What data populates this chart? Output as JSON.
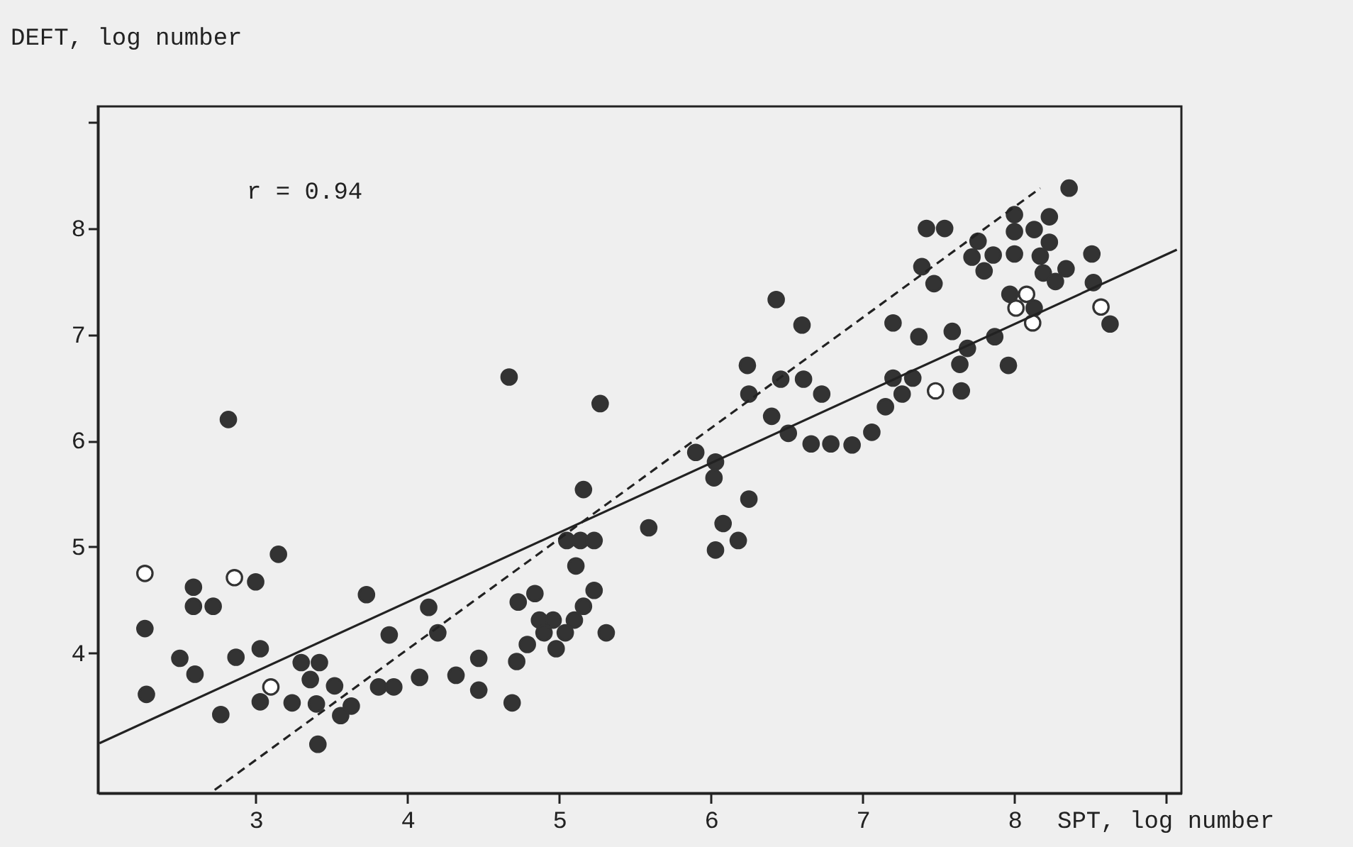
{
  "chart_data": {
    "type": "scatter",
    "xlabel": "SPT, log number",
    "ylabel": "DEFT, log number",
    "annotations": [
      "r = 0.94"
    ],
    "xlim": [
      1.96,
      9.1
    ],
    "xticks": [
      3,
      4,
      5,
      6,
      7,
      8,
      {
        "value": 9,
        "label": null
      }
    ],
    "ylim": [
      2.68,
      9.15
    ],
    "yticks": [
      4,
      5,
      6,
      7,
      8,
      {
        "value": 9,
        "label": null
      }
    ],
    "grid": false,
    "series": [
      {
        "marker": "circle",
        "color": "#333333",
        "x": [
          4.67,
          2.82,
          5.27,
          5.9,
          5.16,
          5.59,
          3.0,
          3.15,
          2.59,
          2.59,
          2.72,
          2.27,
          3.73,
          5.05,
          5.14,
          5.23,
          5.11,
          5.23,
          5.16,
          5.1,
          4.96,
          4.87,
          5.04,
          4.9,
          4.98,
          4.79,
          4.72,
          4.73,
          4.84,
          5.31,
          4.69,
          4.14,
          4.2,
          3.88,
          4.47,
          4.47,
          4.32,
          4.08,
          3.81,
          3.91,
          3.63,
          3.56,
          3.52,
          3.41,
          3.4,
          3.24,
          3.03,
          2.77,
          2.28,
          2.5,
          2.6,
          2.87,
          3.03,
          3.3,
          3.42,
          3.36,
          6.24,
          6.25,
          6.46,
          6.61,
          6.73,
          6.4,
          6.51,
          6.66,
          6.79,
          6.93,
          7.06,
          7.15,
          7.2,
          7.33,
          7.26,
          7.64,
          7.65,
          7.96,
          6.03,
          6.02,
          6.25,
          6.08,
          6.18,
          6.03,
          8.36,
          8.0,
          8.0,
          8.13,
          8.23,
          8.23,
          8.17,
          8.0,
          8.19,
          8.34,
          8.27,
          8.51,
          8.52,
          8.63,
          7.97,
          8.13,
          7.42,
          7.54,
          7.76,
          7.72,
          7.86,
          7.8,
          7.39,
          7.47,
          7.2,
          7.37,
          7.59,
          7.69,
          7.87,
          6.43,
          6.6
        ],
        "values": [
          6.6,
          6.2,
          6.35,
          5.89,
          5.54,
          5.18,
          4.67,
          4.93,
          4.62,
          4.44,
          4.44,
          4.23,
          4.55,
          5.06,
          5.06,
          5.06,
          4.82,
          4.59,
          4.44,
          4.31,
          4.31,
          4.31,
          4.19,
          4.19,
          4.04,
          4.08,
          3.92,
          4.48,
          4.56,
          4.19,
          3.53,
          4.43,
          4.19,
          4.17,
          3.95,
          3.65,
          3.79,
          3.77,
          3.68,
          3.68,
          3.5,
          3.41,
          3.69,
          3.14,
          3.52,
          3.53,
          3.54,
          3.42,
          3.61,
          3.95,
          3.8,
          3.96,
          4.04,
          3.91,
          3.91,
          3.75,
          6.71,
          6.44,
          6.58,
          6.58,
          6.44,
          6.23,
          6.07,
          5.97,
          5.97,
          5.96,
          6.08,
          6.32,
          6.59,
          6.59,
          6.44,
          6.72,
          6.47,
          6.71,
          5.8,
          5.65,
          5.45,
          5.22,
          5.06,
          4.97,
          8.38,
          8.13,
          7.97,
          7.99,
          8.11,
          7.87,
          7.74,
          7.76,
          7.58,
          7.62,
          7.5,
          7.76,
          7.49,
          7.1,
          7.38,
          7.25,
          8.0,
          8.0,
          7.88,
          7.73,
          7.75,
          7.6,
          7.64,
          7.48,
          7.11,
          6.98,
          7.03,
          6.87,
          6.98,
          7.33,
          7.09
        ]
      },
      {
        "marker": "circle",
        "color": "#ffffff",
        "x": [
          2.27,
          2.86,
          3.1,
          7.48,
          8.57,
          8.08,
          8.01,
          8.12
        ],
        "values": [
          4.75,
          4.71,
          3.68,
          6.47,
          7.26,
          7.38,
          7.25,
          7.11
        ]
      },
      {
        "type": "line",
        "marker": "none",
        "line_style": "solid",
        "color": "#222222",
        "x": [
          1.97,
          9.07
        ],
        "values": [
          3.15,
          7.8
        ]
      },
      {
        "type": "line",
        "marker": "none",
        "line_style": "dashed",
        "color": "#222222",
        "x": [
          2.73,
          8.17
        ],
        "values": [
          2.71,
          8.38
        ]
      }
    ]
  }
}
